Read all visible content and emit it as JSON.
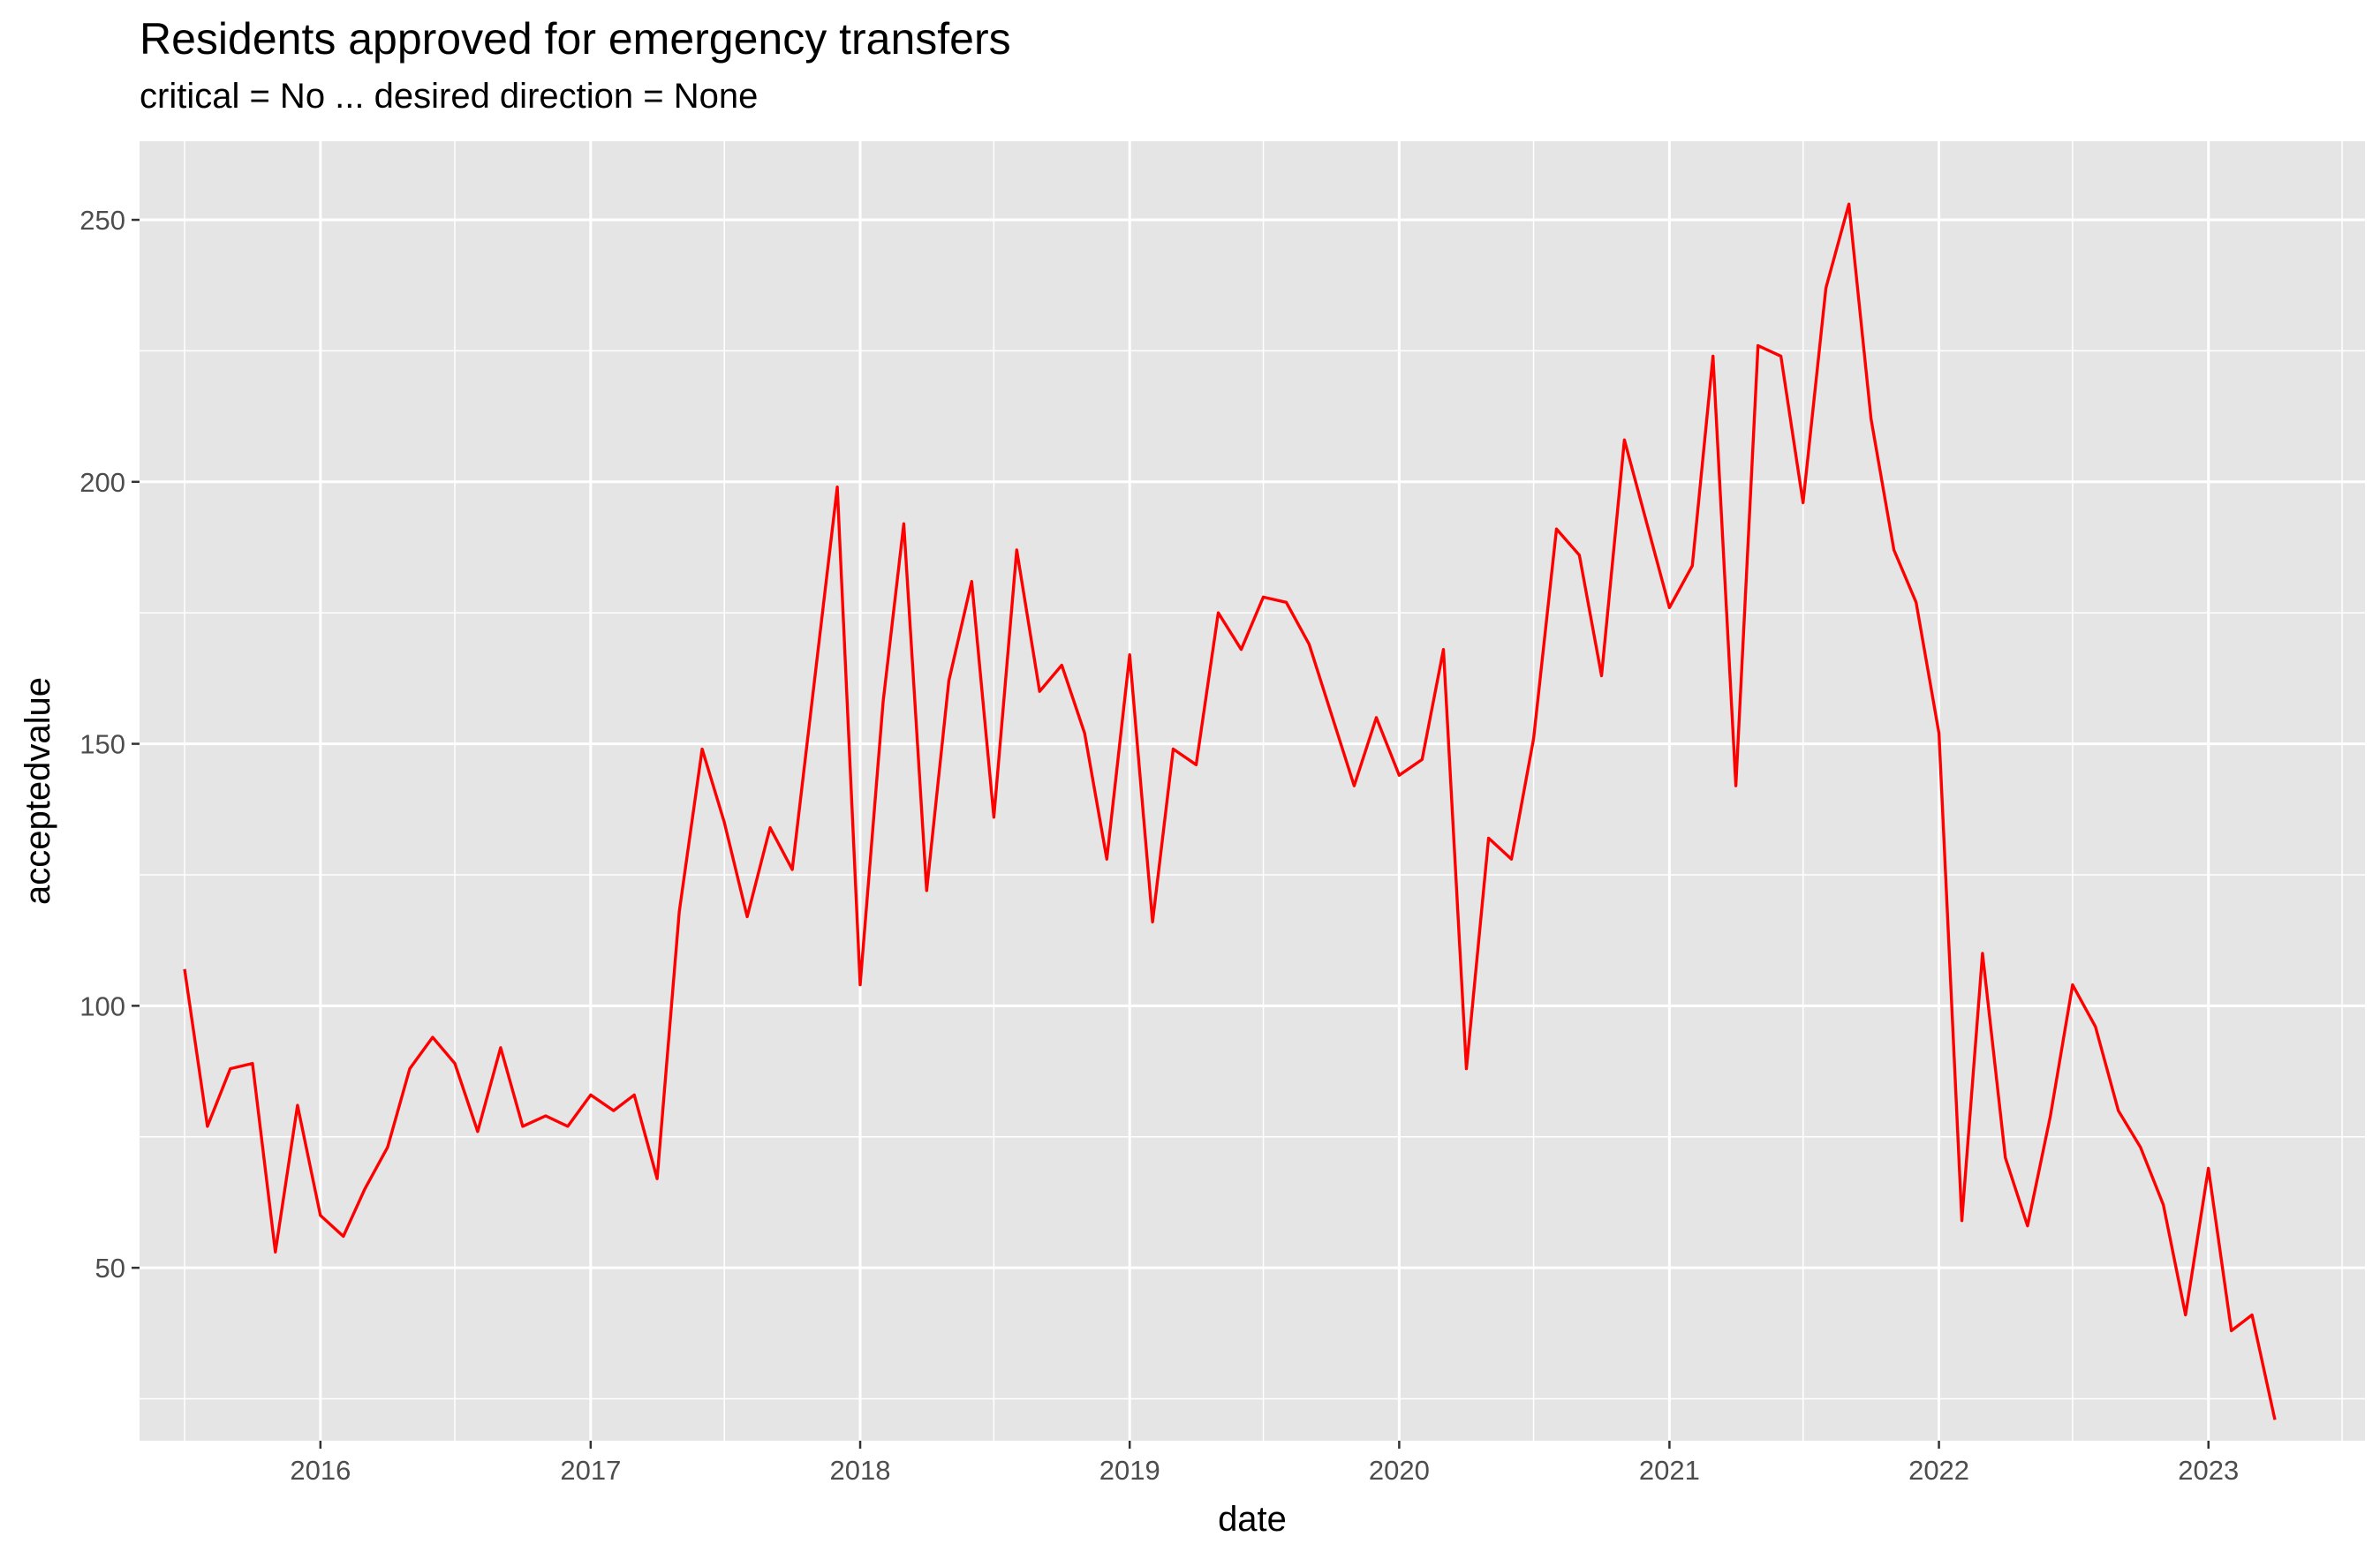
{
  "title": "Residents approved for emergency transfers",
  "subtitle": "critical = No ... desired direction = None",
  "colors": {
    "panel": "#e5e5e5",
    "grid": "#ffffff",
    "line": "#ff0000",
    "tick_text": "#4d4d4d"
  },
  "chart_data": {
    "type": "line",
    "title": "Residents approved for emergency transfers",
    "subtitle": "critical = No ... desired direction = None",
    "xlabel": "date",
    "ylabel": "acceptedvalue",
    "xlim": [
      "2015-05-01",
      "2023-08-01"
    ],
    "ylim": [
      17,
      265
    ],
    "x_ticks": [
      "2016",
      "2017",
      "2018",
      "2019",
      "2020",
      "2021",
      "2022",
      "2023"
    ],
    "y_ticks": [
      50,
      100,
      150,
      200,
      250
    ],
    "grid": true,
    "legend": "none",
    "series": [
      {
        "color": "#ff0000",
        "points": [
          [
            "2015-07-01",
            107
          ],
          [
            "2015-08-01",
            77
          ],
          [
            "2015-09-01",
            88
          ],
          [
            "2015-10-01",
            89
          ],
          [
            "2015-11-01",
            53
          ],
          [
            "2015-12-01",
            81
          ],
          [
            "2016-01-01",
            60
          ],
          [
            "2016-02-01",
            56
          ],
          [
            "2016-03-01",
            65
          ],
          [
            "2016-04-01",
            73
          ],
          [
            "2016-05-01",
            88
          ],
          [
            "2016-06-01",
            94
          ],
          [
            "2016-07-01",
            89
          ],
          [
            "2016-08-01",
            76
          ],
          [
            "2016-09-01",
            92
          ],
          [
            "2016-10-01",
            77
          ],
          [
            "2016-11-01",
            79
          ],
          [
            "2016-12-01",
            77
          ],
          [
            "2017-01-01",
            83
          ],
          [
            "2017-02-01",
            80
          ],
          [
            "2017-03-01",
            83
          ],
          [
            "2017-04-01",
            67
          ],
          [
            "2017-05-01",
            118
          ],
          [
            "2017-06-01",
            149
          ],
          [
            "2017-07-01",
            135
          ],
          [
            "2017-08-01",
            117
          ],
          [
            "2017-09-01",
            134
          ],
          [
            "2017-10-01",
            126
          ],
          [
            "2017-12-01",
            199
          ],
          [
            "2018-01-01",
            104
          ],
          [
            "2018-02-01",
            158
          ],
          [
            "2018-03-01",
            192
          ],
          [
            "2018-04-01",
            122
          ],
          [
            "2018-05-01",
            162
          ],
          [
            "2018-06-01",
            181
          ],
          [
            "2018-07-01",
            136
          ],
          [
            "2018-08-01",
            187
          ],
          [
            "2018-09-01",
            160
          ],
          [
            "2018-10-01",
            165
          ],
          [
            "2018-11-01",
            152
          ],
          [
            "2018-12-01",
            128
          ],
          [
            "2019-01-01",
            167
          ],
          [
            "2019-02-01",
            116
          ],
          [
            "2019-03-01",
            149
          ],
          [
            "2019-04-01",
            146
          ],
          [
            "2019-05-01",
            175
          ],
          [
            "2019-06-01",
            168
          ],
          [
            "2019-07-01",
            178
          ],
          [
            "2019-08-01",
            177
          ],
          [
            "2019-09-01",
            169
          ],
          [
            "2019-11-01",
            142
          ],
          [
            "2019-12-01",
            155
          ],
          [
            "2020-01-01",
            144
          ],
          [
            "2020-02-01",
            147
          ],
          [
            "2020-03-01",
            168
          ],
          [
            "2020-04-01",
            88
          ],
          [
            "2020-05-01",
            132
          ],
          [
            "2020-06-01",
            128
          ],
          [
            "2020-07-01",
            151
          ],
          [
            "2020-08-01",
            191
          ],
          [
            "2020-09-01",
            186
          ],
          [
            "2020-10-01",
            163
          ],
          [
            "2020-11-01",
            208
          ],
          [
            "2021-01-01",
            176
          ],
          [
            "2021-02-01",
            184
          ],
          [
            "2021-03-01",
            224
          ],
          [
            "2021-04-01",
            142
          ],
          [
            "2021-05-01",
            226
          ],
          [
            "2021-06-01",
            224
          ],
          [
            "2021-07-01",
            196
          ],
          [
            "2021-08-01",
            237
          ],
          [
            "2021-09-01",
            253
          ],
          [
            "2021-10-01",
            212
          ],
          [
            "2021-11-01",
            187
          ],
          [
            "2021-12-01",
            177
          ],
          [
            "2022-01-01",
            152
          ],
          [
            "2022-02-01",
            59
          ],
          [
            "2022-03-01",
            110
          ],
          [
            "2022-04-01",
            71
          ],
          [
            "2022-05-01",
            58
          ],
          [
            "2022-06-01",
            79
          ],
          [
            "2022-07-01",
            104
          ],
          [
            "2022-08-01",
            96
          ],
          [
            "2022-09-01",
            80
          ],
          [
            "2022-10-01",
            73
          ],
          [
            "2022-11-01",
            62
          ],
          [
            "2022-12-01",
            41
          ],
          [
            "2023-01-01",
            69
          ],
          [
            "2023-02-01",
            38
          ],
          [
            "2023-03-01",
            41
          ],
          [
            "2023-04-01",
            21
          ]
        ]
      }
    ]
  }
}
